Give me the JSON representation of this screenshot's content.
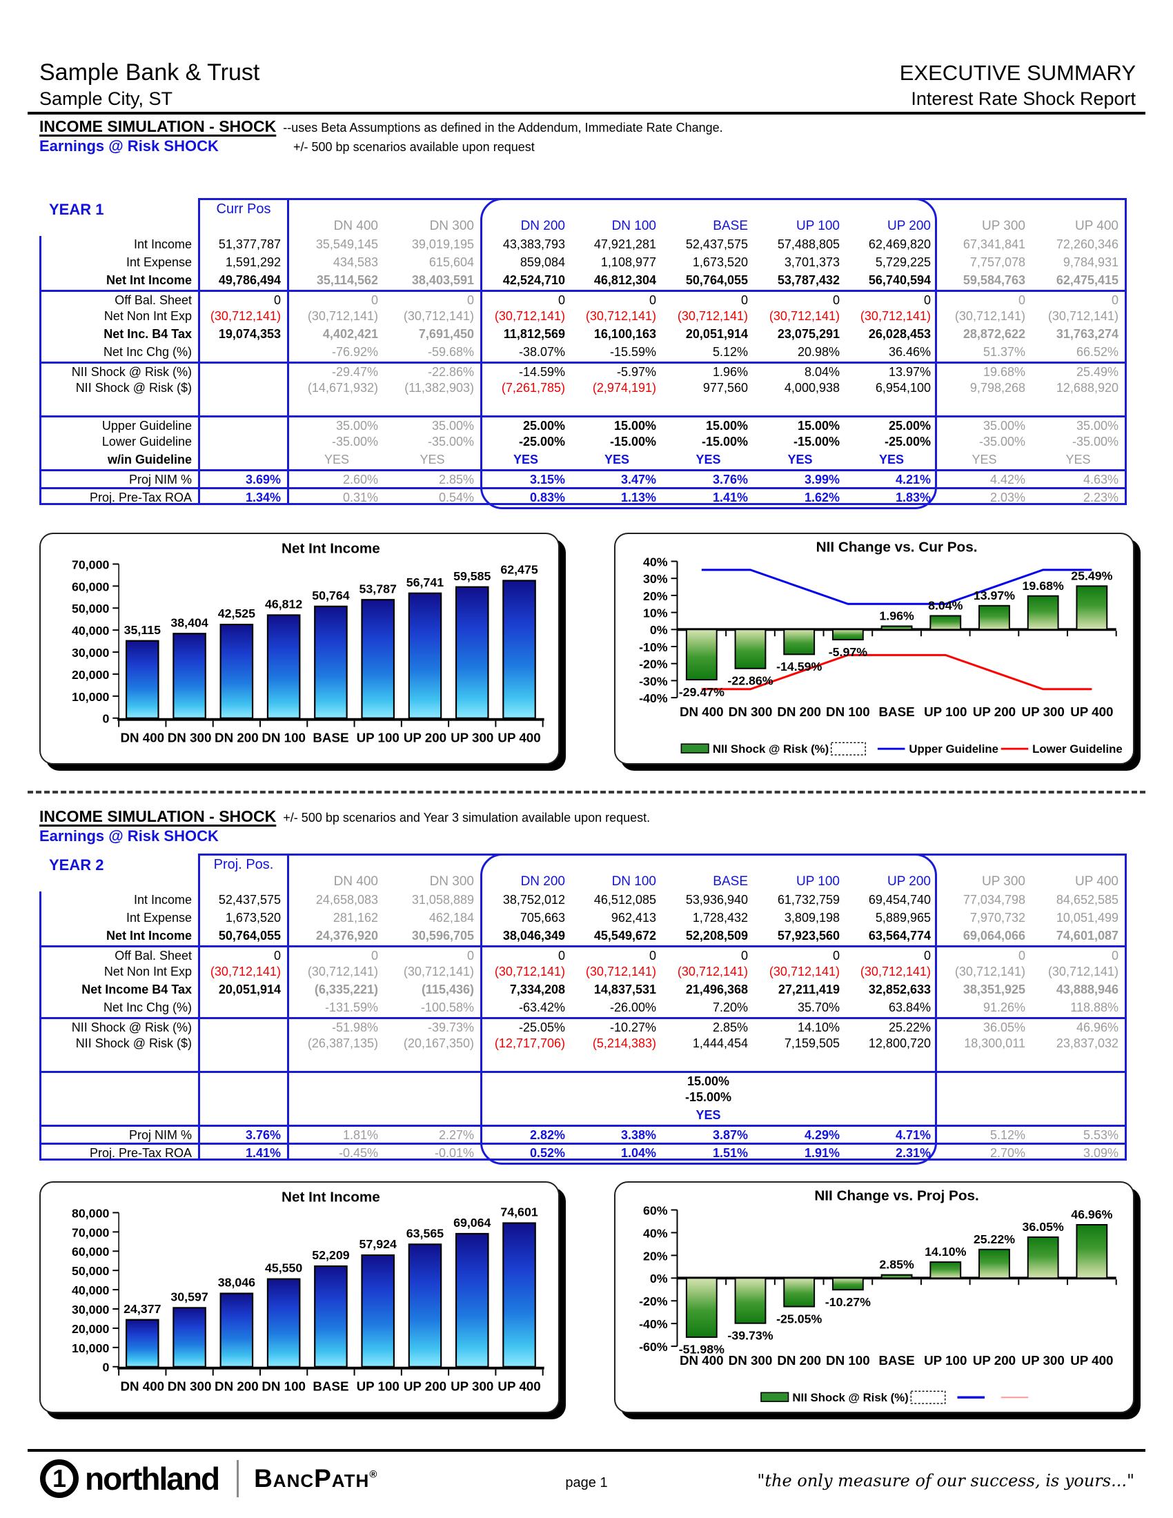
{
  "header": {
    "company": "Sample Bank & Trust",
    "city": "Sample City, ST",
    "title": "EXECUTIVE SUMMARY",
    "subtitle": "Interest Rate Shock Report"
  },
  "sections": [
    {
      "heading": "INCOME SIMULATION - SHOCK",
      "heading_note": "--uses Beta Assumptions as defined in the Addendum, Immediate Rate Change.",
      "subheading": "Earnings @ Risk SHOCK",
      "subheading_note": "+/- 500 bp scenarios available upon request",
      "year_label": "YEAR 1",
      "pos_header": "Curr Pos",
      "col_headers": [
        "DN 400",
        "DN 300",
        "DN 200",
        "DN 100",
        "BASE",
        "UP 100",
        "UP 200",
        "UP 300",
        "UP 400"
      ],
      "rows": [
        {
          "label": "Int Income",
          "pos": "51,377,787",
          "values": [
            "35,549,145",
            "39,019,195",
            "43,383,793",
            "47,921,281",
            "52,437,575",
            "57,488,805",
            "62,469,820",
            "67,341,841",
            "72,260,346"
          ]
        },
        {
          "label": "Int Expense",
          "pos": "1,591,292",
          "values": [
            "434,583",
            "615,604",
            "859,084",
            "1,108,977",
            "1,673,520",
            "3,701,373",
            "5,729,225",
            "7,757,078",
            "9,784,931"
          ]
        },
        {
          "label": "Net Int Income",
          "pos": "49,786,494",
          "values": [
            "35,114,562",
            "38,403,591",
            "42,524,710",
            "46,812,304",
            "50,764,055",
            "53,787,432",
            "56,740,594",
            "59,584,763",
            "62,475,415"
          ],
          "lb": 1,
          "ba": 1
        },
        {
          "label": "Off Bal. Sheet",
          "pos": "0",
          "values": [
            "0",
            "0",
            "0",
            "0",
            "0",
            "0",
            "0",
            "0",
            "0"
          ],
          "st": 1
        },
        {
          "label": "Net Non Int Exp",
          "pos": "(30,712,141)",
          "values": [
            "(30,712,141)",
            "(30,712,141)",
            "(30,712,141)",
            "(30,712,141)",
            "(30,712,141)",
            "(30,712,141)",
            "(30,712,141)",
            "(30,712,141)",
            "(30,712,141)"
          ]
        },
        {
          "label": "Net Inc. B4 Tax",
          "pos": "19,074,353",
          "values": [
            "4,402,421",
            "7,691,450",
            "11,812,569",
            "16,100,163",
            "20,051,914",
            "23,075,291",
            "26,028,453",
            "28,872,622",
            "31,763,274"
          ],
          "lb": 1,
          "ba": 1
        },
        {
          "label": "Net Inc Chg (%)",
          "pos": "",
          "values": [
            "-76.92%",
            "-59.68%",
            "-38.07%",
            "-15.59%",
            "5.12%",
            "20.98%",
            "36.46%",
            "51.37%",
            "66.52%"
          ]
        },
        {
          "label": "NII Shock @ Risk (%)",
          "pos": "",
          "values": [
            "-29.47%",
            "-22.86%",
            "-14.59%",
            "-5.97%",
            "1.96%",
            "8.04%",
            "13.97%",
            "19.68%",
            "25.49%"
          ],
          "st": 1
        },
        {
          "label": "NII Shock @ Risk ($)",
          "pos": "",
          "values": [
            "(14,671,932)",
            "(11,382,903)",
            "(7,261,785)",
            "(2,974,191)",
            "977,560",
            "4,000,938",
            "6,954,100",
            "9,798,268",
            "12,688,920"
          ]
        },
        {
          "blank": 1,
          "label": "",
          "pos": "",
          "values": [
            "",
            "",
            "",
            "",
            "",
            "",
            "",
            "",
            ""
          ]
        },
        {
          "label": "Upper Guideline",
          "pos": "",
          "values": [
            "35.00%",
            "35.00%",
            "25.00%",
            "15.00%",
            "15.00%",
            "15.00%",
            "25.00%",
            "35.00%",
            "35.00%"
          ],
          "st": 1,
          "bh": 1
        },
        {
          "label": "Lower Guideline",
          "pos": "",
          "values": [
            "-35.00%",
            "-35.00%",
            "-25.00%",
            "-15.00%",
            "-15.00%",
            "-15.00%",
            "-25.00%",
            "-35.00%",
            "-35.00%"
          ],
          "bh": 1
        },
        {
          "label": "w/in Guideline",
          "pos": "",
          "values": [
            "YES",
            "YES",
            "YES",
            "YES",
            "YES",
            "YES",
            "YES",
            "YES",
            "YES"
          ],
          "lb": 1,
          "bh": 1,
          "blue": 1,
          "center": 1
        },
        {
          "label": "Proj NIM %",
          "pos": "3.69%",
          "values": [
            "2.60%",
            "2.85%",
            "3.15%",
            "3.47%",
            "3.76%",
            "3.99%",
            "4.21%",
            "4.42%",
            "4.63%"
          ],
          "st": 1,
          "bh": 1,
          "blue": 1
        },
        {
          "label": "Proj. Pre-Tax ROA",
          "pos": "1.34%",
          "values": [
            "0.31%",
            "0.54%",
            "0.83%",
            "1.13%",
            "1.41%",
            "1.62%",
            "1.83%",
            "2.03%",
            "2.23%"
          ],
          "st": 1,
          "bh": 1,
          "blue": 1
        }
      ]
    },
    {
      "heading": "INCOME SIMULATION - SHOCK",
      "heading_note": "+/- 500 bp scenarios and Year 3 simulation available upon request.",
      "subheading": "Earnings @ Risk SHOCK",
      "subheading_note": "",
      "year_label": "YEAR 2",
      "pos_header": "Proj. Pos.",
      "col_headers": [
        "DN 400",
        "DN 300",
        "DN 200",
        "DN 100",
        "BASE",
        "UP 100",
        "UP 200",
        "UP 300",
        "UP 400"
      ],
      "rows": [
        {
          "label": "Int Income",
          "pos": "52,437,575",
          "values": [
            "24,658,083",
            "31,058,889",
            "38,752,012",
            "46,512,085",
            "53,936,940",
            "61,732,759",
            "69,454,740",
            "77,034,798",
            "84,652,585"
          ]
        },
        {
          "label": "Int Expense",
          "pos": "1,673,520",
          "values": [
            "281,162",
            "462,184",
            "705,663",
            "962,413",
            "1,728,432",
            "3,809,198",
            "5,889,965",
            "7,970,732",
            "10,051,499"
          ]
        },
        {
          "label": "Net Int Income",
          "pos": "50,764,055",
          "values": [
            "24,376,920",
            "30,596,705",
            "38,046,349",
            "45,549,672",
            "52,208,509",
            "57,923,560",
            "63,564,774",
            "69,064,066",
            "74,601,087"
          ],
          "lb": 1,
          "ba": 1
        },
        {
          "label": "Off Bal. Sheet",
          "pos": "0",
          "values": [
            "0",
            "0",
            "0",
            "0",
            "0",
            "0",
            "0",
            "0",
            "0"
          ],
          "st": 1
        },
        {
          "label": "Net Non Int Exp",
          "pos": "(30,712,141)",
          "values": [
            "(30,712,141)",
            "(30,712,141)",
            "(30,712,141)",
            "(30,712,141)",
            "(30,712,141)",
            "(30,712,141)",
            "(30,712,141)",
            "(30,712,141)",
            "(30,712,141)"
          ]
        },
        {
          "label": "Net Income B4 Tax",
          "pos": "20,051,914",
          "values": [
            "(6,335,221)",
            "(115,436)",
            "7,334,208",
            "14,837,531",
            "21,496,368",
            "27,211,419",
            "32,852,633",
            "38,351,925",
            "43,888,946"
          ],
          "lb": 1,
          "ba": 1
        },
        {
          "label": "Net Inc Chg (%)",
          "pos": "",
          "values": [
            "-131.59%",
            "-100.58%",
            "-63.42%",
            "-26.00%",
            "7.20%",
            "35.70%",
            "63.84%",
            "91.26%",
            "118.88%"
          ]
        },
        {
          "label": "NII Shock @ Risk (%)",
          "pos": "",
          "values": [
            "-51.98%",
            "-39.73%",
            "-25.05%",
            "-10.27%",
            "2.85%",
            "14.10%",
            "25.22%",
            "36.05%",
            "46.96%"
          ],
          "st": 1
        },
        {
          "label": "NII Shock @ Risk ($)",
          "pos": "",
          "values": [
            "(26,387,135)",
            "(20,167,350)",
            "(12,717,706)",
            "(5,214,383)",
            "1,444,454",
            "7,159,505",
            "12,800,720",
            "18,300,011",
            "23,837,032"
          ]
        },
        {
          "blank": 1,
          "label": "",
          "pos": "",
          "values": [
            "",
            "",
            "",
            "",
            "",
            "",
            "",
            "",
            ""
          ]
        },
        {
          "label": "",
          "pos": "",
          "values": [
            "",
            "",
            "",
            "",
            "15.00%",
            "",
            "",
            "",
            ""
          ],
          "st": 1,
          "bh": 1,
          "center": 1
        },
        {
          "label": "",
          "pos": "",
          "values": [
            "",
            "",
            "",
            "",
            "-15.00%",
            "",
            "",
            "",
            ""
          ],
          "bh": 1,
          "center": 1
        },
        {
          "label": "",
          "pos": "",
          "values": [
            "",
            "",
            "",
            "",
            "YES",
            "",
            "",
            "",
            ""
          ],
          "bh": 1,
          "blue": 1,
          "center": 1
        },
        {
          "label": "Proj NIM %",
          "pos": "3.76%",
          "values": [
            "1.81%",
            "2.27%",
            "2.82%",
            "3.38%",
            "3.87%",
            "4.29%",
            "4.71%",
            "5.12%",
            "5.53%"
          ],
          "st": 1,
          "bh": 1,
          "blue": 1
        },
        {
          "label": "Proj. Pre-Tax ROA",
          "pos": "1.41%",
          "values": [
            "-0.45%",
            "-0.01%",
            "0.52%",
            "1.04%",
            "1.51%",
            "1.91%",
            "2.31%",
            "2.70%",
            "3.09%"
          ],
          "st": 1,
          "bh": 1,
          "blue": 1
        }
      ]
    }
  ],
  "chart_data": [
    {
      "type": "bar",
      "title": "Net Int Income",
      "categories": [
        "DN 400",
        "DN 300",
        "DN 200",
        "DN 100",
        "BASE",
        "UP 100",
        "UP 200",
        "UP 300",
        "UP 400"
      ],
      "values": [
        35115,
        38404,
        42525,
        46812,
        50764,
        53787,
        56741,
        59585,
        62475
      ],
      "value_labels": [
        "35,115",
        "38,404",
        "42,525",
        "46,812",
        "50,764",
        "53,787",
        "56,741",
        "59,585",
        "62,475"
      ],
      "xlabel": "",
      "ylabel": "",
      "ylim": [
        0,
        70000
      ],
      "ytick_step": 10000,
      "ytick_labels": [
        "0",
        "10,000",
        "20,000",
        "30,000",
        "40,000",
        "50,000",
        "60,000",
        "70,000"
      ],
      "grid": false,
      "bar_style": "blue"
    },
    {
      "type": "bar",
      "title": "NII Change vs. Cur Pos.",
      "categories": [
        "DN 400",
        "DN 300",
        "DN 200",
        "DN 100",
        "BASE",
        "UP 100",
        "UP 200",
        "UP 300",
        "UP 400"
      ],
      "values": [
        -29.47,
        -22.86,
        -14.59,
        -5.97,
        1.96,
        8.04,
        13.97,
        19.68,
        25.49
      ],
      "value_labels": [
        "-29.47%",
        "-22.86%",
        "-14.59%",
        "-5.97%",
        "1.96%",
        "8.04%",
        "13.97%",
        "19.68%",
        "25.49%"
      ],
      "xlabel": "",
      "ylabel": "",
      "ylim": [
        -40,
        40
      ],
      "ytick_step": 10,
      "ytick_labels": [
        "-40%",
        "-30%",
        "-20%",
        "-10%",
        "0%",
        "10%",
        "20%",
        "30%",
        "40%"
      ],
      "grid": false,
      "bar_style": "green",
      "series": [
        {
          "name": "Upper Guideline",
          "color": "#0000ee",
          "values": [
            35,
            35,
            25,
            15,
            15,
            15,
            25,
            35,
            35
          ]
        },
        {
          "name": "Lower Guideline",
          "color": "#ff0000",
          "values": [
            -35,
            -35,
            -25,
            -15,
            -15,
            -15,
            -25,
            -35,
            -35
          ]
        }
      ],
      "legend_position": "bottom",
      "legend": [
        {
          "type": "bar",
          "label": "NII Shock @ Risk (%)"
        },
        {
          "type": "dashed-box",
          "label": ""
        },
        {
          "type": "line",
          "label": "Upper Guideline",
          "color": "#0000ee",
          "width": 3
        },
        {
          "type": "line",
          "label": "Lower Guideline",
          "color": "#ff0000",
          "width": 3
        }
      ]
    },
    {
      "type": "bar",
      "title": "Net Int Income",
      "categories": [
        "DN 400",
        "DN 300",
        "DN 200",
        "DN 100",
        "BASE",
        "UP 100",
        "UP 200",
        "UP 300",
        "UP 400"
      ],
      "values": [
        24377,
        30597,
        38046,
        45550,
        52209,
        57924,
        63565,
        69064,
        74601
      ],
      "value_labels": [
        "24,377",
        "30,597",
        "38,046",
        "45,550",
        "52,209",
        "57,924",
        "63,565",
        "69,064",
        "74,601"
      ],
      "xlabel": "",
      "ylabel": "",
      "ylim": [
        0,
        80000
      ],
      "ytick_step": 10000,
      "ytick_labels": [
        "0",
        "10,000",
        "20,000",
        "30,000",
        "40,000",
        "50,000",
        "60,000",
        "70,000",
        "80,000"
      ],
      "grid": false,
      "bar_style": "blue"
    },
    {
      "type": "bar",
      "title": "NII Change vs. Proj Pos.",
      "categories": [
        "DN 400",
        "DN 300",
        "DN 200",
        "DN 100",
        "BASE",
        "UP 100",
        "UP 200",
        "UP 300",
        "UP 400"
      ],
      "values": [
        -51.98,
        -39.73,
        -25.05,
        -10.27,
        2.85,
        14.1,
        25.22,
        36.05,
        46.96
      ],
      "value_labels": [
        "-51.98%",
        "-39.73%",
        "-25.05%",
        "-10.27%",
        "2.85%",
        "14.10%",
        "25.22%",
        "36.05%",
        "46.96%"
      ],
      "xlabel": "",
      "ylabel": "",
      "ylim": [
        -60,
        60
      ],
      "ytick_step": 20,
      "ytick_labels": [
        "-60%",
        "-40%",
        "-20%",
        "0%",
        "20%",
        "40%",
        "60%"
      ],
      "grid": false,
      "bar_style": "green",
      "series": [],
      "legend_position": "bottom",
      "legend": [
        {
          "type": "bar",
          "label": "NII Shock @ Risk (%)"
        },
        {
          "type": "dashed-box",
          "label": ""
        },
        {
          "type": "line",
          "label": "",
          "color": "#0000ee",
          "width": 3.5
        },
        {
          "type": "line",
          "label": "",
          "color": "#ff9a9a",
          "width": 2
        }
      ]
    }
  ],
  "colors": {
    "accent_blue": "#1212dd",
    "table_border": "#1a1ad9",
    "dim_text": "#9c9c9c",
    "negative_red": "#ee0000"
  },
  "footer": {
    "brand": "northland",
    "brand_mark": "1",
    "product": "BancPath",
    "reg": "®",
    "page": "page 1",
    "quote": "\"the only measure of our success, is yours...\""
  }
}
